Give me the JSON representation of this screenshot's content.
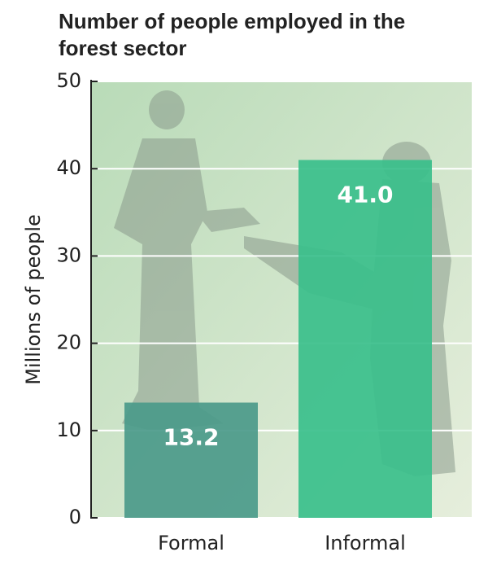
{
  "chart_data": {
    "type": "bar",
    "title": "Number of people employed in the forest sector",
    "y_label": "Millions of people",
    "categories": [
      "Formal",
      "Informal"
    ],
    "values": [
      13.2,
      41.0
    ],
    "value_labels": [
      "13.2",
      "41.0"
    ],
    "colors": [
      "#4b9a8a",
      "#3abf8b"
    ],
    "ylim": [
      0,
      50
    ],
    "yticks": [
      0,
      10,
      20,
      30,
      40,
      50
    ],
    "grid": true
  }
}
